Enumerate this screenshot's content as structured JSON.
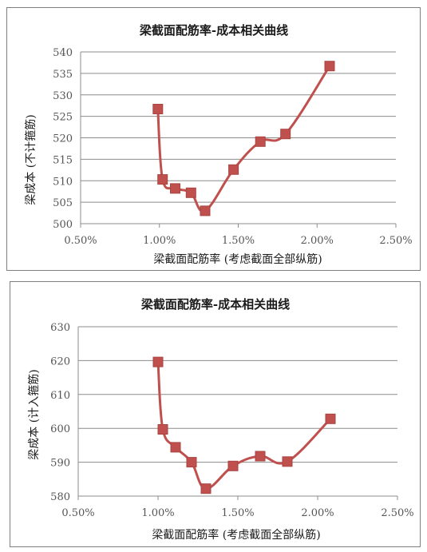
{
  "chart_data": [
    {
      "type": "line",
      "title": "梁截面配筋率-成本相关曲线",
      "xlabel": "梁截面配筋率 (考虑截面全部纵筋)",
      "ylabel": "梁成本 (不计箍筋)",
      "xlim": [
        0.005,
        0.025
      ],
      "ylim": [
        500,
        540
      ],
      "x_ticks": [
        "0.50%",
        "1.00%",
        "1.50%",
        "2.00%",
        "2.50%"
      ],
      "y_ticks": [
        "500",
        "505",
        "510",
        "515",
        "520",
        "525",
        "530",
        "535",
        "540"
      ],
      "grid": "horizontal",
      "smooth": true,
      "series": [
        {
          "color": "#c0504d",
          "x": [
            0.0099,
            0.0102,
            0.011,
            0.012,
            0.0129,
            0.0147,
            0.0164,
            0.018,
            0.0208
          ],
          "y": [
            526.7,
            510.3,
            508.2,
            507.2,
            503.0,
            512.6,
            519.1,
            520.9,
            536.7
          ]
        }
      ]
    },
    {
      "type": "line",
      "title": "梁截面配筋率-成本相关曲线",
      "xlabel": "梁截面配筋率 (考虑截面全部纵筋)",
      "ylabel": "梁成本 (计入箍筋)",
      "xlim": [
        0.005,
        0.025
      ],
      "ylim": [
        580,
        630
      ],
      "x_ticks": [
        "0.50%",
        "1.00%",
        "1.50%",
        "2.00%",
        "2.50%"
      ],
      "y_ticks": [
        "580",
        "590",
        "600",
        "610",
        "620",
        "630"
      ],
      "grid": "horizontal",
      "smooth": true,
      "series": [
        {
          "color": "#c0504d",
          "x": [
            0.01,
            0.0103,
            0.0111,
            0.0121,
            0.013,
            0.0147,
            0.0164,
            0.0181,
            0.0208
          ],
          "y": [
            619.6,
            599.7,
            594.4,
            590.0,
            582.2,
            588.9,
            591.8,
            590.2,
            602.8
          ]
        }
      ]
    }
  ]
}
